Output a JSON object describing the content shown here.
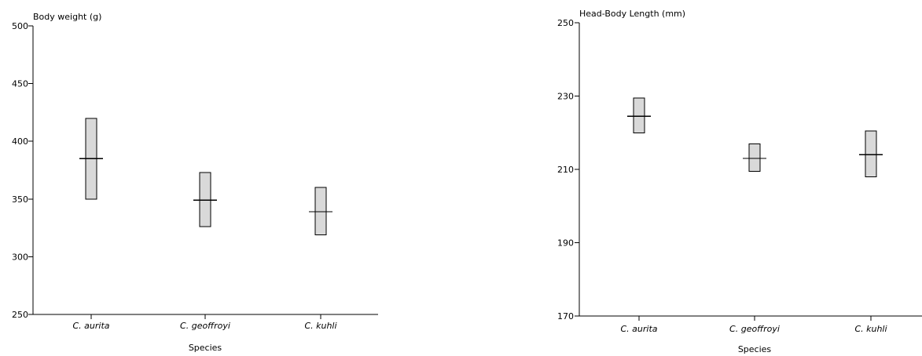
{
  "chart_data": [
    {
      "type": "box",
      "ylabel": "Body weight (g)",
      "xlabel": "Species",
      "ylim": [
        250,
        500
      ],
      "yticks": [
        250,
        300,
        350,
        400,
        450,
        500
      ],
      "categories": [
        "C. aurita",
        "C. geoffroyi",
        "C. kuhli"
      ],
      "series": [
        {
          "category": "C. aurita",
          "min": 350,
          "max": 420,
          "mean": 385
        },
        {
          "category": "C. geoffroyi",
          "min": 326,
          "max": 373,
          "mean": 349
        },
        {
          "category": "C. kuhli",
          "min": 319,
          "max": 360,
          "mean": 339
        }
      ]
    },
    {
      "type": "box",
      "ylabel": "Head-Body Length (mm)",
      "xlabel": "Species",
      "ylim": [
        170,
        250
      ],
      "yticks": [
        170,
        190,
        210,
        230,
        250
      ],
      "categories": [
        "C. aurita",
        "C. geoffroyi",
        "C. kuhli"
      ],
      "series": [
        {
          "category": "C. aurita",
          "min": 220,
          "max": 229.5,
          "mean": 224.5
        },
        {
          "category": "C. geoffroyi",
          "min": 209.5,
          "max": 217,
          "mean": 213
        },
        {
          "category": "C. kuhli",
          "min": 208,
          "max": 220.5,
          "mean": 214
        }
      ]
    }
  ]
}
